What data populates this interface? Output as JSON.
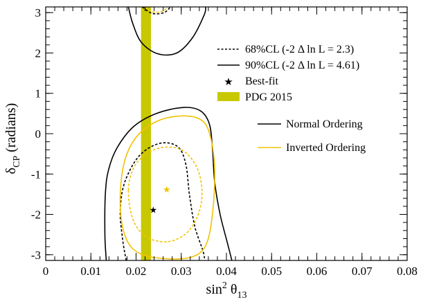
{
  "chart_data": {
    "type": "contour",
    "xlabel": {
      "main": "sin",
      "sup": "2",
      "symbol": " θ",
      "sub": "13"
    },
    "ylabel": {
      "main": "δ",
      "sub": "CP",
      "rest": " (radians)"
    },
    "xlim": [
      0,
      0.08
    ],
    "ylim": [
      -3.14159,
      3.14159
    ],
    "xticks": [
      0,
      0.01,
      0.02,
      0.03,
      0.04,
      0.05,
      0.06,
      0.07,
      0.08
    ],
    "yticks": [
      -3,
      -2,
      -1,
      0,
      1,
      2,
      3
    ],
    "grid": false,
    "legend_top": [
      {
        "label": "68%CL (-2 Δ ln L = 2.3)",
        "style": "dashed",
        "color": "#000000"
      },
      {
        "label": "90%CL (-2 Δ ln L = 4.61)",
        "style": "solid",
        "color": "#000000"
      },
      {
        "label": "Best-fit",
        "style": "star",
        "color": "#000000"
      },
      {
        "label": "PDG 2015",
        "style": "band",
        "color": "#c8c800"
      }
    ],
    "legend_orderings": [
      {
        "label": "Normal Ordering",
        "color": "#000000"
      },
      {
        "label": "Inverted Ordering",
        "color": "#f2c200"
      }
    ],
    "pdg_band": {
      "x_range": [
        0.0211,
        0.0233
      ],
      "color": "#c8c800"
    },
    "best_fit": [
      {
        "ordering": "Normal Ordering",
        "x": 0.0238,
        "y": -1.88,
        "color": "#000000"
      },
      {
        "ordering": "Inverted Ordering",
        "x": 0.0268,
        "y": -1.37,
        "color": "#f2c200"
      }
    ],
    "contours": [
      {
        "ordering": "Normal Ordering",
        "cl": "90%CL",
        "style": "solid",
        "color": "#000000",
        "closed": false,
        "points": [
          [
            0.0134,
            -3.14
          ],
          [
            0.0131,
            -2.5
          ],
          [
            0.0132,
            -1.5
          ],
          [
            0.0139,
            -0.9
          ],
          [
            0.0158,
            -0.35
          ],
          [
            0.0195,
            0.18
          ],
          [
            0.0245,
            0.5
          ],
          [
            0.0304,
            0.65
          ],
          [
            0.0342,
            0.57
          ],
          [
            0.0362,
            0.25
          ],
          [
            0.0369,
            -0.35
          ],
          [
            0.0374,
            -1.2
          ],
          [
            0.0386,
            -2.0
          ],
          [
            0.0402,
            -2.7
          ],
          [
            0.0412,
            -3.14
          ]
        ]
      },
      {
        "ordering": "Normal Ordering",
        "cl": "90%CL",
        "style": "solid",
        "color": "#000000",
        "closed": false,
        "points": [
          [
            0.0183,
            3.14
          ],
          [
            0.0193,
            2.72
          ],
          [
            0.0212,
            2.26
          ],
          [
            0.0248,
            1.98
          ],
          [
            0.029,
            2.0
          ],
          [
            0.0325,
            2.38
          ],
          [
            0.0351,
            2.95
          ],
          [
            0.0354,
            3.14
          ]
        ]
      },
      {
        "ordering": "Normal Ordering",
        "cl": "68%CL",
        "style": "dashed",
        "color": "#000000",
        "closed": false,
        "points": [
          [
            0.0178,
            -3.14
          ],
          [
            0.017,
            -2.6
          ],
          [
            0.0165,
            -1.9
          ],
          [
            0.0175,
            -1.2
          ],
          [
            0.0207,
            -0.55
          ],
          [
            0.0252,
            -0.24
          ],
          [
            0.0292,
            -0.32
          ],
          [
            0.031,
            -0.75
          ],
          [
            0.0318,
            -1.5
          ],
          [
            0.033,
            -2.3
          ],
          [
            0.0348,
            -2.9
          ],
          [
            0.0352,
            -3.14
          ]
        ]
      },
      {
        "ordering": "Normal Ordering",
        "cl": "68%CL",
        "style": "dashed",
        "color": "#000000",
        "closed": false,
        "points": [
          [
            0.0214,
            3.14
          ],
          [
            0.0236,
            2.98
          ],
          [
            0.0262,
            3.0
          ],
          [
            0.0276,
            3.14
          ]
        ]
      },
      {
        "ordering": "Inverted Ordering",
        "cl": "90%CL",
        "style": "solid",
        "color": "#f2c200",
        "closed": true,
        "points": [
          [
            0.0165,
            -1.8
          ],
          [
            0.0172,
            -0.8
          ],
          [
            0.0198,
            -0.12
          ],
          [
            0.0245,
            0.3
          ],
          [
            0.03,
            0.44
          ],
          [
            0.0344,
            0.34
          ],
          [
            0.0364,
            -0.05
          ],
          [
            0.0374,
            -0.9
          ],
          [
            0.0369,
            -2.0
          ],
          [
            0.0355,
            -2.75
          ],
          [
            0.0325,
            -3.05
          ],
          [
            0.027,
            -3.1
          ],
          [
            0.021,
            -2.98
          ],
          [
            0.0178,
            -2.6
          ]
        ]
      },
      {
        "ordering": "Inverted Ordering",
        "cl": "68%CL",
        "style": "dashed",
        "color": "#f2c200",
        "closed": true,
        "points": [
          [
            0.0183,
            -1.4
          ],
          [
            0.0196,
            -0.82
          ],
          [
            0.023,
            -0.45
          ],
          [
            0.0272,
            -0.33
          ],
          [
            0.0309,
            -0.46
          ],
          [
            0.0337,
            -0.9
          ],
          [
            0.0346,
            -1.5
          ],
          [
            0.0336,
            -2.05
          ],
          [
            0.031,
            -2.48
          ],
          [
            0.0268,
            -2.68
          ],
          [
            0.0222,
            -2.55
          ],
          [
            0.0193,
            -2.12
          ]
        ]
      },
      {
        "ordering": "Inverted Ordering",
        "cl": "68%CL",
        "style": "dashed",
        "color": "#f2c200",
        "closed": false,
        "points": [
          [
            0.0222,
            3.14
          ],
          [
            0.0234,
            3.02
          ],
          [
            0.0258,
            3.03
          ],
          [
            0.027,
            3.14
          ]
        ]
      }
    ]
  }
}
